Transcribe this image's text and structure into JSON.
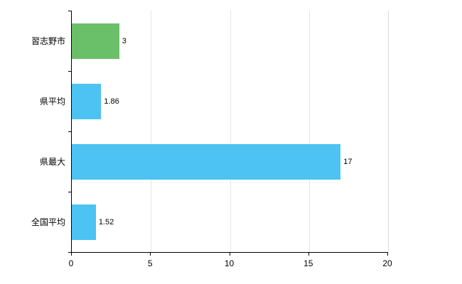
{
  "chart_data": {
    "type": "bar",
    "orientation": "horizontal",
    "title": "",
    "xlabel": "",
    "ylabel": "",
    "categories": [
      "習志野市",
      "県平均",
      "県最大",
      "全国平均"
    ],
    "values": [
      3,
      1.86,
      17,
      1.52
    ],
    "value_labels": [
      "3",
      "1.86",
      "17",
      "1.52"
    ],
    "bar_colors": [
      "#6abf69",
      "#4cc3f2",
      "#4cc3f2",
      "#4cc3f2"
    ],
    "xlim": [
      0,
      20
    ],
    "x_ticks": [
      0,
      5,
      10,
      15,
      20
    ],
    "x_tick_labels": [
      "0",
      "5",
      "10",
      "15",
      "20"
    ],
    "grid": true,
    "legend": "none",
    "colors": {
      "highlight_bar": "#6abf69",
      "default_bar": "#4cc3f2",
      "axis": "#000000",
      "gridline": "#e6e6e6",
      "background": "#ffffff"
    }
  }
}
